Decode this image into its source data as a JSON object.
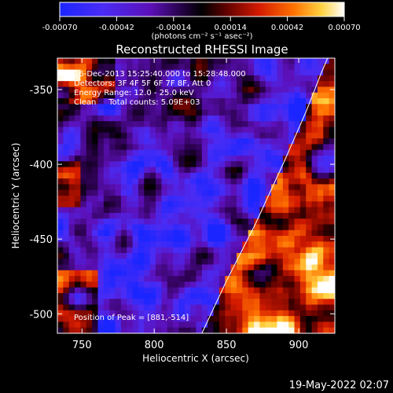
{
  "chart_data": {
    "type": "heatmap",
    "title": "Reconstructed RHESSI Image",
    "xlabel": "Heliocentric X (arcsec)",
    "ylabel": "Heliocentric Y (arcsec)",
    "xlim": [
      733,
      925
    ],
    "ylim": [
      -513,
      -329
    ],
    "x_ticks": [
      750,
      800,
      850,
      900
    ],
    "y_ticks": [
      -350,
      -400,
      -450,
      -500
    ],
    "colorbar": {
      "range": [
        -0.0007,
        0.0007
      ],
      "ticks": [
        "-0.00070",
        "-0.00042",
        "-0.00014",
        "0.00014",
        "0.00042",
        "0.00070"
      ],
      "unit_label": "(photons cm⁻² s⁻¹ asec⁻²)",
      "colormap": [
        "#0000ff",
        "#6a00ff",
        "#4b0082",
        "#000000",
        "#8b0000",
        "#ff3000",
        "#ffa500",
        "#ffff80",
        "#ffffff"
      ]
    },
    "annotations": [
      "16-Dec-2013 15:25:40.000 to 15:28:48.000",
      "Detectors: 3F 4F 5F 6F 7F 8F, Att 0",
      "Energy Range: 12.0 - 25.0 keV",
      "Clean     Total counts: 5.09E+03"
    ],
    "peak_label": "Position of Peak = [881,-514]",
    "peak": [
      881,
      -514
    ],
    "limb_points": [
      [
        833,
        -513
      ],
      [
        850,
        -478
      ],
      [
        870,
        -440
      ],
      [
        890,
        -398
      ],
      [
        905,
        -365
      ],
      [
        916,
        -338
      ],
      [
        920,
        -329
      ]
    ]
  },
  "timestamp": "19-May-2022 02:07"
}
